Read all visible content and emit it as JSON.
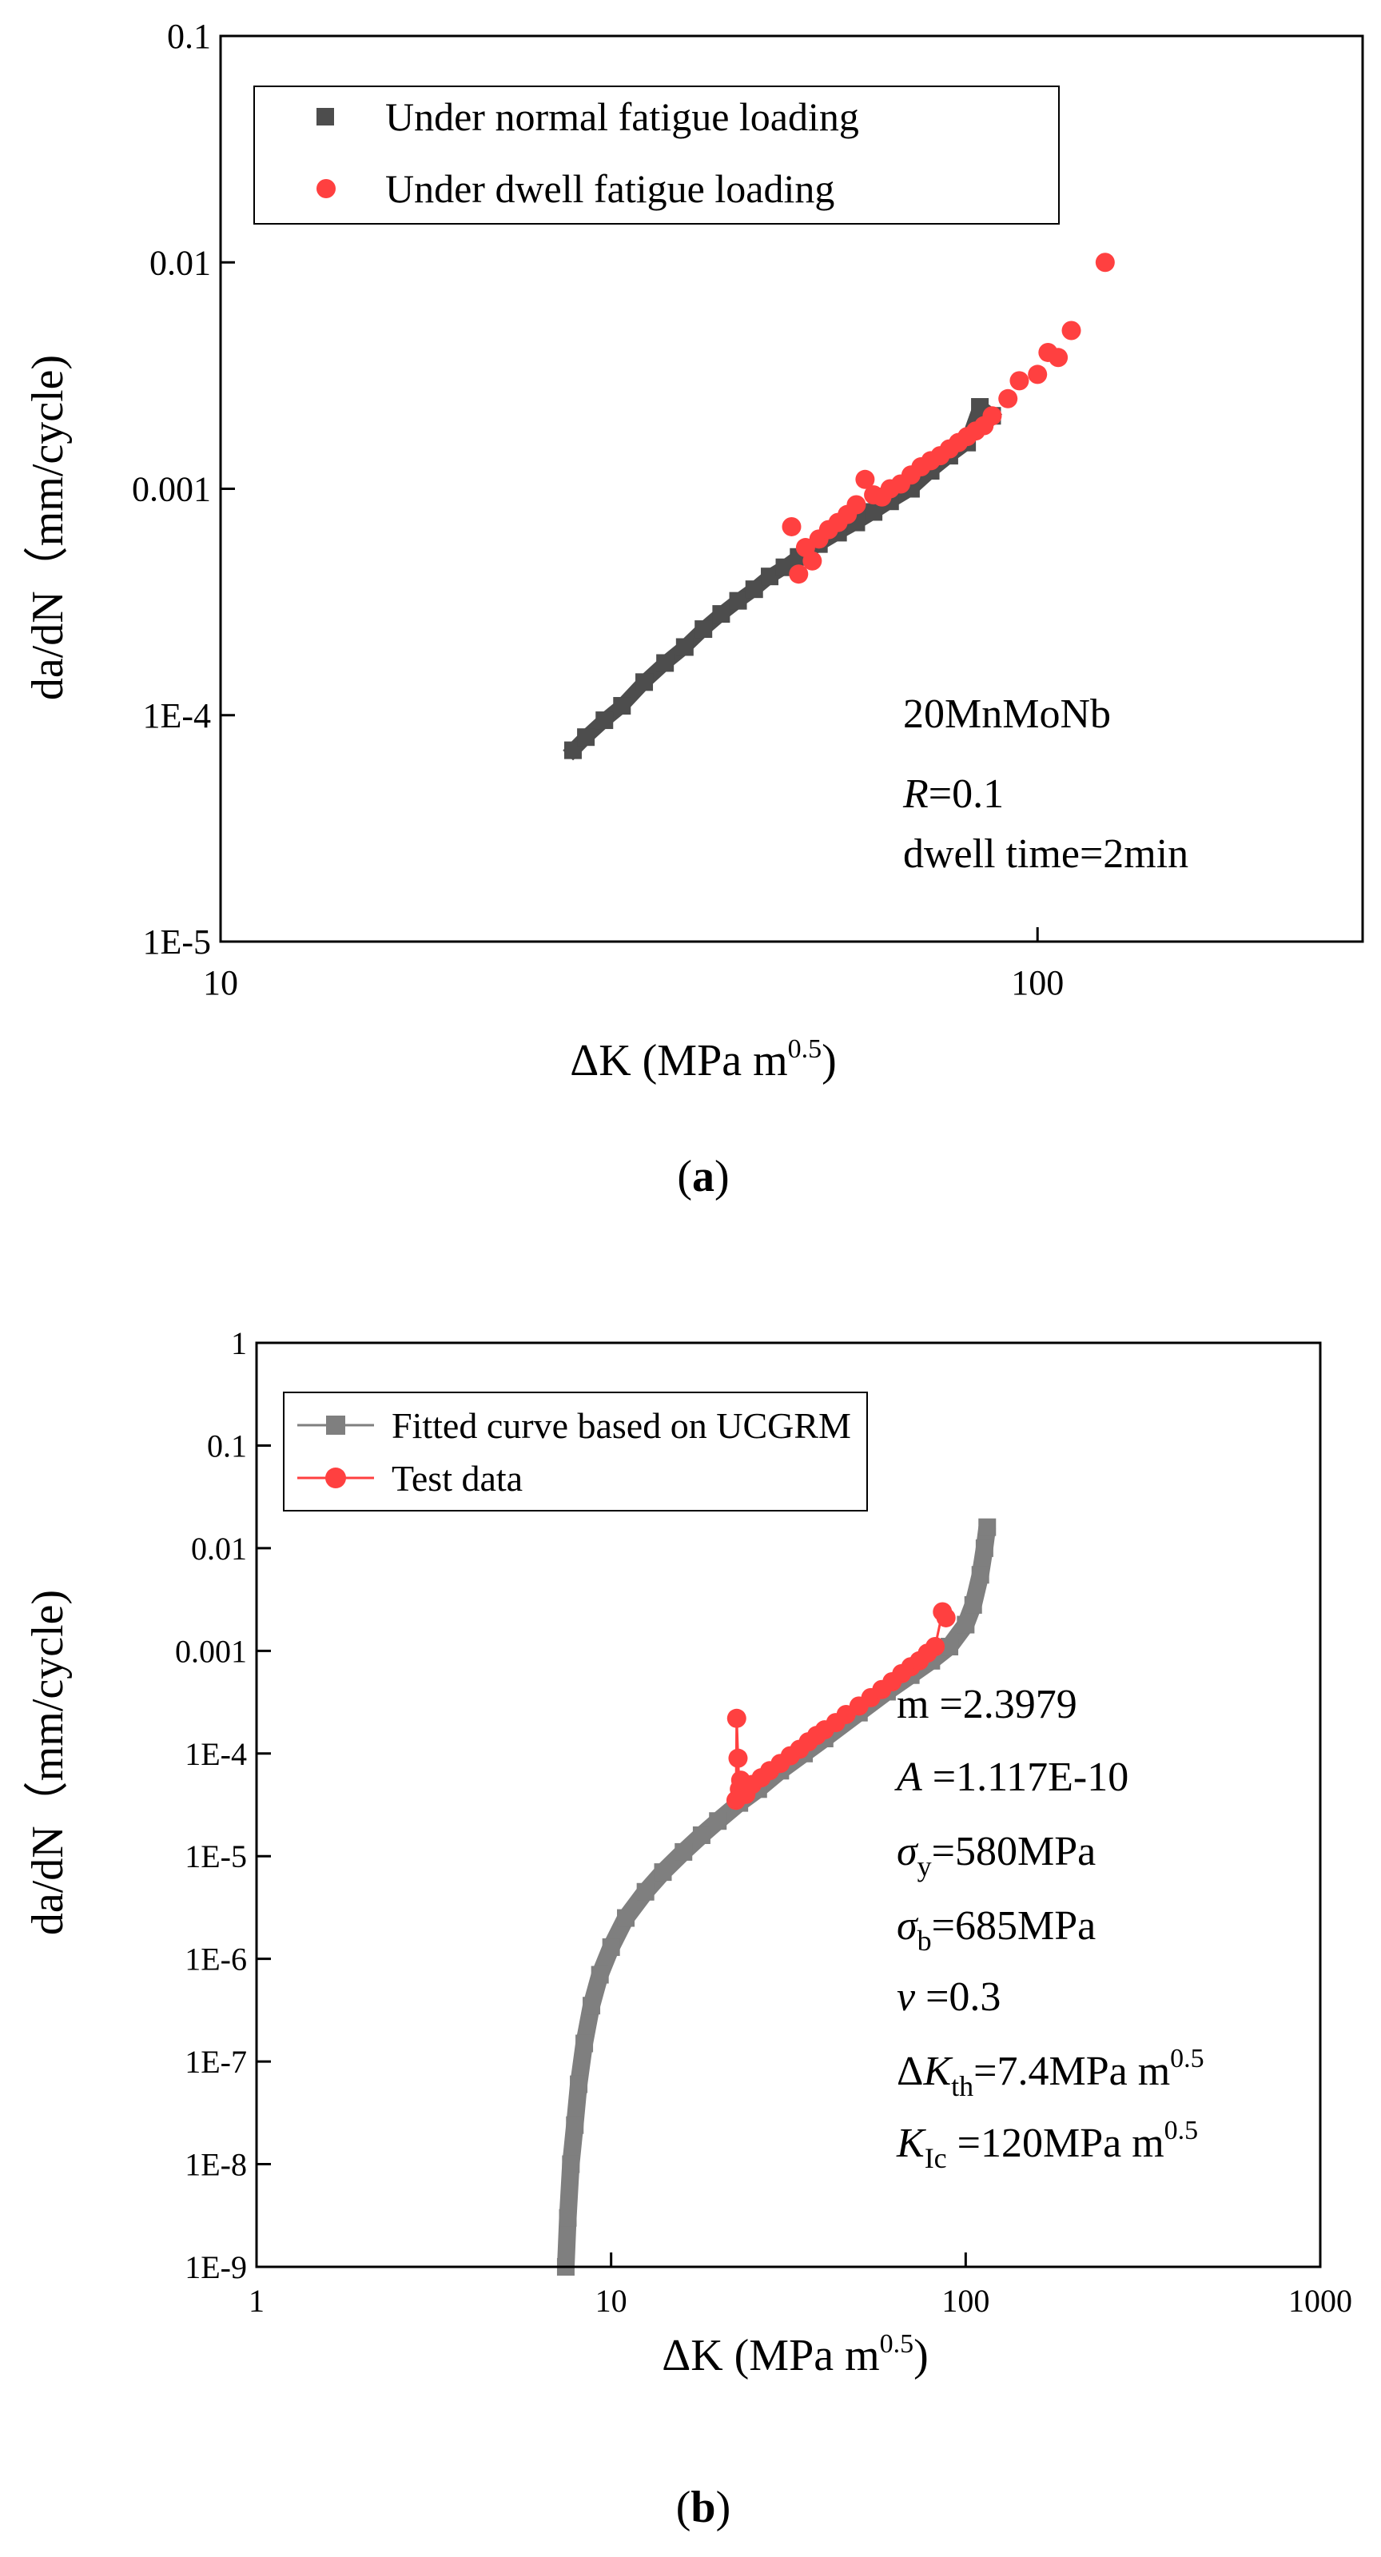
{
  "chart_data": [
    {
      "panel": "(a)",
      "panel_letter": "a",
      "type": "scatter",
      "xscale": "log",
      "yscale": "log",
      "xlim": [
        10,
        250
      ],
      "ylim": [
        1e-05,
        0.1
      ],
      "x_ticks": [
        10,
        100
      ],
      "x_tick_labels": [
        "10",
        "100"
      ],
      "y_ticks": [
        1e-05,
        0.0001,
        0.001,
        0.01,
        0.1
      ],
      "y_tick_labels": [
        "1E-5",
        "1E-4",
        "0.001",
        "0.01",
        "0.1"
      ],
      "xlabel": {
        "prefix": "ΔK (MPa m",
        "sup": "0.5",
        "suffix": ")"
      },
      "ylabel": "da/dN（mm/cycle)",
      "legend_position": "top-left",
      "series": [
        {
          "name": "Under normal fatigue loading",
          "marker": "square",
          "color": "#4d4d4d",
          "x": [
            27.0,
            28.0,
            29.5,
            31.0,
            33.0,
            35.0,
            37.0,
            39.0,
            41.0,
            43.0,
            45.0,
            47.0,
            49.0,
            51.0,
            54.0,
            57.0,
            60.0,
            63.0,
            66.0,
            70.0,
            74.0,
            78.0,
            82.0,
            85.0,
            88.0
          ],
          "y": [
            7e-05,
            8e-05,
            9.5e-05,
            0.00011,
            0.00014,
            0.00017,
            0.0002,
            0.00024,
            0.00028,
            0.00032,
            0.00036,
            0.00041,
            0.00045,
            0.0005,
            0.00057,
            0.00064,
            0.00071,
            0.00079,
            0.00088,
            0.001,
            0.0012,
            0.0014,
            0.0016,
            0.0023,
            0.0021
          ]
        },
        {
          "name": "Under dwell fatigue loading",
          "marker": "circle",
          "color": "#ff4040",
          "x": [
            50.0,
            51.0,
            52.0,
            53.0,
            54.0,
            55.5,
            57.0,
            58.5,
            60.0,
            61.5,
            63.0,
            64.5,
            66.0,
            68.0,
            70.0,
            72.0,
            74.0,
            76.0,
            78.0,
            80.0,
            82.0,
            84.0,
            86.0,
            88.0,
            92.0,
            95.0,
            100.0,
            103.0,
            106.0,
            110.0,
            121.0
          ],
          "y": [
            0.00068,
            0.00042,
            0.00055,
            0.00048,
            0.0006,
            0.00066,
            0.00071,
            0.00077,
            0.00085,
            0.0011,
            0.00094,
            0.00092,
            0.001,
            0.00105,
            0.00115,
            0.00125,
            0.00133,
            0.0014,
            0.0015,
            0.0016,
            0.0017,
            0.0018,
            0.0019,
            0.0021,
            0.0025,
            0.003,
            0.0032,
            0.004,
            0.0038,
            0.005,
            0.01
          ]
        }
      ],
      "annotations": {
        "material": "20MnMoNb",
        "R_label": "R",
        "R_value": "=0.1",
        "dwell": "dwell time=2min"
      }
    },
    {
      "panel": "(b)",
      "panel_letter": "b",
      "type": "line",
      "xscale": "log",
      "yscale": "log",
      "xlim": [
        1,
        1000
      ],
      "ylim": [
        1e-09,
        1
      ],
      "x_ticks": [
        1,
        10,
        100,
        1000
      ],
      "x_tick_labels": [
        "1",
        "10",
        "100",
        "1000"
      ],
      "y_ticks": [
        1e-09,
        1e-08,
        1e-07,
        1e-06,
        1e-05,
        0.0001,
        0.001,
        0.01,
        0.1,
        1
      ],
      "y_tick_labels": [
        "1E-9",
        "1E-8",
        "1E-7",
        "1E-6",
        "1E-5",
        "1E-4",
        "0.001",
        "0.01",
        "0.1",
        "1"
      ],
      "xlabel": {
        "prefix": "ΔK (MPa m",
        "sup": "0.5",
        "suffix": ")"
      },
      "ylabel": "da/dN（mm/cycle)",
      "legend_position": "top-left",
      "series": [
        {
          "name": "Fitted curve based on UCGRM",
          "marker": "square",
          "color": "#7f7f7f",
          "x": [
            7.45,
            7.55,
            7.7,
            7.9,
            8.1,
            8.4,
            8.8,
            9.3,
            10.0,
            11.0,
            12.5,
            14.0,
            16.0,
            18.0,
            20.0,
            23.0,
            26.0,
            30.0,
            35.0,
            40.0,
            50.0,
            60.0,
            70.0,
            80.0,
            90.0,
            100.0,
            105.0,
            110.0,
            113.0,
            115.0
          ],
          "y": [
            1e-09,
            3e-09,
            1e-08,
            2.4e-08,
            6e-08,
            1.5e-07,
            3.5e-07,
            7e-07,
            1.3e-06,
            2.5e-06,
            4.5e-06,
            7e-06,
            1.1e-05,
            1.6e-05,
            2.2e-05,
            3.3e-05,
            4.5e-05,
            6.8e-05,
            0.0001,
            0.00014,
            0.00025,
            0.0004,
            0.00058,
            0.0008,
            0.0011,
            0.0018,
            0.0028,
            0.0055,
            0.01,
            0.016
          ]
        },
        {
          "name": "Test data",
          "marker": "circle",
          "color": "#ff4040",
          "x": [
            22.5,
            22.6,
            22.8,
            23.0,
            23.2,
            24.0,
            25.0,
            26.5,
            28.0,
            30.0,
            32.0,
            34.0,
            36.0,
            38.0,
            40.0,
            43.0,
            46.0,
            50.0,
            54.0,
            58.0,
            62.0,
            66.0,
            70.0,
            74.0,
            78.0,
            82.0,
            86.0,
            88.0
          ],
          "y": [
            3.5e-05,
            0.00022,
            9e-05,
            4.5e-05,
            5.5e-05,
            4e-05,
            5e-05,
            5.8e-05,
            6.8e-05,
            8e-05,
            9.5e-05,
            0.00011,
            0.00013,
            0.00015,
            0.00017,
            0.0002,
            0.00024,
            0.00029,
            0.00035,
            0.00042,
            0.0005,
            0.0006,
            0.0007,
            0.0008,
            0.00095,
            0.0011,
            0.0024,
            0.0021
          ]
        }
      ],
      "annotations": {
        "m": "m =2.3979",
        "A_label": "A",
        "A_value": " =1.117E-10",
        "sigma": "σ",
        "sigma_y_sub": "y",
        "sigma_y_value": "=580MPa",
        "sigma_b_sub": "b",
        "sigma_b_value": "=685MPa",
        "nu_label": "ν",
        "nu_value": " =0.3",
        "dK_prefix": "Δ",
        "dK_letter": "K",
        "dK_sub": "th",
        "dK_value": "=7.4MPa m",
        "dK_sup": "0.5",
        "K_letter": "K",
        "K_sub": "Ic",
        "K_value": " =120MPa m",
        "K_sup": "0.5"
      }
    }
  ]
}
